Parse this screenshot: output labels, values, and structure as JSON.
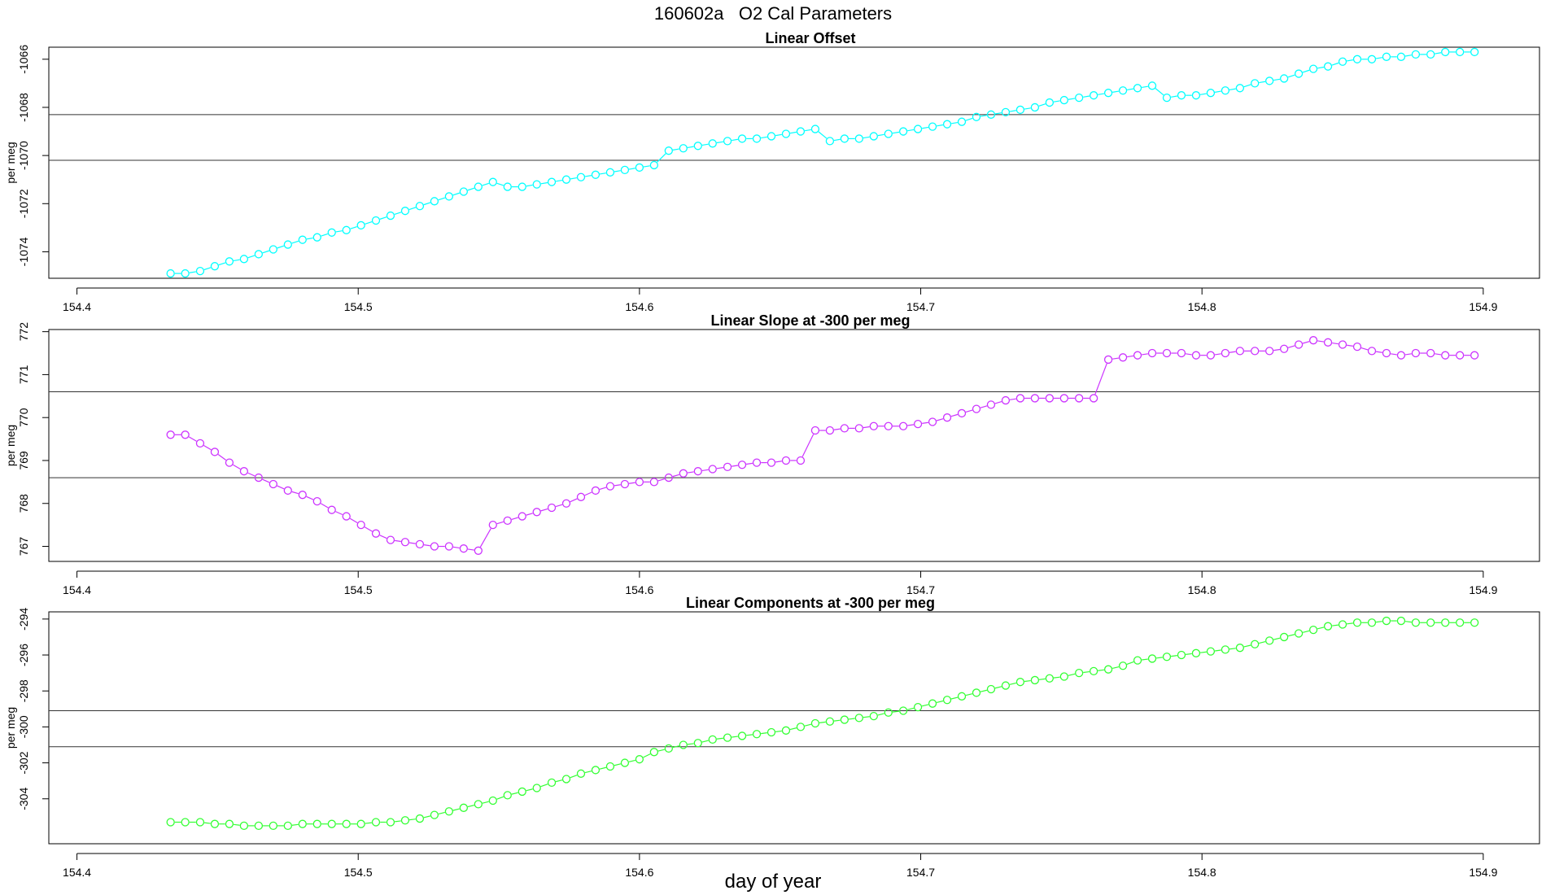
{
  "title": "160602a   O2 Cal Parameters",
  "xlabel": "day of year",
  "chart_data": [
    {
      "type": "scatter",
      "title": "Linear Offset",
      "ylabel": "per meg",
      "color": "#00ffff",
      "xlim": [
        154.39,
        154.92
      ],
      "ylim": [
        -1075.1,
        -1065.5
      ],
      "yticks": [
        -1074,
        -1072,
        -1070,
        -1068,
        -1066
      ],
      "xticks": [
        154.4,
        154.5,
        154.6,
        154.7,
        154.8,
        154.9
      ],
      "hlines": [
        -1068.3,
        -1070.2
      ],
      "series": [
        {
          "x": [
            154.4333,
            154.4385,
            154.4438,
            154.449,
            154.4542,
            154.4594,
            154.4646,
            154.4698,
            154.475,
            154.4802,
            154.4854,
            154.4906,
            154.4958,
            154.501,
            154.5063,
            154.5115,
            154.5167,
            154.5219,
            154.5271,
            154.5323,
            154.5375,
            154.5427,
            154.5479,
            154.5531,
            154.5583,
            154.5635,
            154.5688,
            154.574,
            154.5792,
            154.5844,
            154.5896,
            154.5948,
            154.6,
            154.6052,
            154.6104,
            154.6156,
            154.6208,
            154.626,
            154.6313,
            154.6365,
            154.6417,
            154.6469,
            154.6521,
            154.6573,
            154.6625,
            154.6677,
            154.6729,
            154.6781,
            154.6833,
            154.6885,
            154.6938,
            154.699,
            154.7042,
            154.7094,
            154.7146,
            154.7198,
            154.725,
            154.7302,
            154.7354,
            154.7406,
            154.7458,
            154.751,
            154.7563,
            154.7615,
            154.7667,
            154.7719,
            154.7771,
            154.7823,
            154.7875,
            154.7927,
            154.7979,
            154.8031,
            154.8083,
            154.8135,
            154.8188,
            154.824,
            154.8292,
            154.8344,
            154.8396,
            154.8448,
            154.85,
            154.8552,
            154.8604,
            154.8656,
            154.8708,
            154.876,
            154.8813,
            154.8865,
            154.8917,
            154.8969
          ],
          "y": [
            -1074.9,
            -1074.9,
            -1074.8,
            -1074.6,
            -1074.4,
            -1074.3,
            -1074.1,
            -1073.9,
            -1073.7,
            -1073.5,
            -1073.4,
            -1073.2,
            -1073.1,
            -1072.9,
            -1072.7,
            -1072.5,
            -1072.3,
            -1072.1,
            -1071.9,
            -1071.7,
            -1071.5,
            -1071.3,
            -1071.1,
            -1071.3,
            -1071.3,
            -1071.2,
            -1071.1,
            -1071.0,
            -1070.9,
            -1070.8,
            -1070.7,
            -1070.6,
            -1070.5,
            -1070.4,
            -1069.8,
            -1069.7,
            -1069.6,
            -1069.5,
            -1069.4,
            -1069.3,
            -1069.3,
            -1069.2,
            -1069.1,
            -1069.0,
            -1068.9,
            -1069.4,
            -1069.3,
            -1069.3,
            -1069.2,
            -1069.1,
            -1069.0,
            -1068.9,
            -1068.8,
            -1068.7,
            -1068.6,
            -1068.4,
            -1068.3,
            -1068.2,
            -1068.1,
            -1068.0,
            -1067.8,
            -1067.7,
            -1067.6,
            -1067.5,
            -1067.4,
            -1067.3,
            -1067.2,
            -1067.1,
            -1067.6,
            -1067.5,
            -1067.5,
            -1067.4,
            -1067.3,
            -1067.2,
            -1067.0,
            -1066.9,
            -1066.8,
            -1066.6,
            -1066.4,
            -1066.3,
            -1066.1,
            -1066.0,
            -1066.0,
            -1065.9,
            -1065.9,
            -1065.8,
            -1065.8,
            -1065.7,
            -1065.7,
            -1065.7
          ]
        }
      ]
    },
    {
      "type": "scatter",
      "title": "Linear Slope at -300 per meg",
      "ylabel": "per meg",
      "color": "#cc33ff",
      "xlim": [
        154.39,
        154.92
      ],
      "ylim": [
        766.65,
        772.05
      ],
      "yticks": [
        767,
        768,
        769,
        770,
        771,
        772
      ],
      "xticks": [
        154.4,
        154.5,
        154.6,
        154.7,
        154.8,
        154.9
      ],
      "hlines": [
        770.6,
        768.6
      ],
      "series": [
        {
          "x": [
            154.4333,
            154.4385,
            154.4438,
            154.449,
            154.4542,
            154.4594,
            154.4646,
            154.4698,
            154.475,
            154.4802,
            154.4854,
            154.4906,
            154.4958,
            154.501,
            154.5063,
            154.5115,
            154.5167,
            154.5219,
            154.5271,
            154.5323,
            154.5375,
            154.5427,
            154.5479,
            154.5531,
            154.5583,
            154.5635,
            154.5688,
            154.574,
            154.5792,
            154.5844,
            154.5896,
            154.5948,
            154.6,
            154.6052,
            154.6104,
            154.6156,
            154.6208,
            154.626,
            154.6313,
            154.6365,
            154.6417,
            154.6469,
            154.6521,
            154.6573,
            154.6625,
            154.6677,
            154.6729,
            154.6781,
            154.6833,
            154.6885,
            154.6938,
            154.699,
            154.7042,
            154.7094,
            154.7146,
            154.7198,
            154.725,
            154.7302,
            154.7354,
            154.7406,
            154.7458,
            154.751,
            154.7563,
            154.7615,
            154.7667,
            154.7719,
            154.7771,
            154.7823,
            154.7875,
            154.7927,
            154.7979,
            154.8031,
            154.8083,
            154.8135,
            154.8188,
            154.824,
            154.8292,
            154.8344,
            154.8396,
            154.8448,
            154.85,
            154.8552,
            154.8604,
            154.8656,
            154.8708,
            154.876,
            154.8813,
            154.8865,
            154.8917,
            154.8969
          ],
          "y": [
            769.6,
            769.6,
            769.4,
            769.2,
            768.95,
            768.75,
            768.6,
            768.45,
            768.3,
            768.2,
            768.05,
            767.85,
            767.7,
            767.5,
            767.3,
            767.15,
            767.1,
            767.05,
            767.0,
            767.0,
            766.95,
            766.9,
            767.5,
            767.6,
            767.7,
            767.8,
            767.9,
            768.0,
            768.15,
            768.3,
            768.4,
            768.45,
            768.5,
            768.5,
            768.6,
            768.7,
            768.75,
            768.8,
            768.85,
            768.9,
            768.95,
            768.95,
            769.0,
            769.0,
            769.7,
            769.7,
            769.75,
            769.75,
            769.8,
            769.8,
            769.8,
            769.85,
            769.9,
            770.0,
            770.1,
            770.2,
            770.3,
            770.4,
            770.45,
            770.45,
            770.45,
            770.45,
            770.45,
            770.45,
            771.35,
            771.4,
            771.45,
            771.5,
            771.5,
            771.5,
            771.45,
            771.45,
            771.5,
            771.55,
            771.55,
            771.55,
            771.6,
            771.7,
            771.8,
            771.75,
            771.7,
            771.65,
            771.55,
            771.5,
            771.45,
            771.5,
            771.5,
            771.45,
            771.45,
            771.45
          ]
        }
      ]
    },
    {
      "type": "scatter",
      "title": "Linear Components at -300 per meg",
      "ylabel": "per meg",
      "color": "#33ff33",
      "xlim": [
        154.39,
        154.92
      ],
      "ylim": [
        -306.5,
        -293.6
      ],
      "yticks": [
        -304,
        -302,
        -300,
        -298,
        -296,
        -294
      ],
      "xticks": [
        154.4,
        154.5,
        154.6,
        154.7,
        154.8,
        154.9
      ],
      "hlines": [
        -299.1,
        -301.1
      ],
      "series": [
        {
          "x": [
            154.4333,
            154.4385,
            154.4438,
            154.449,
            154.4542,
            154.4594,
            154.4646,
            154.4698,
            154.475,
            154.4802,
            154.4854,
            154.4906,
            154.4958,
            154.501,
            154.5063,
            154.5115,
            154.5167,
            154.5219,
            154.5271,
            154.5323,
            154.5375,
            154.5427,
            154.5479,
            154.5531,
            154.5583,
            154.5635,
            154.5688,
            154.574,
            154.5792,
            154.5844,
            154.5896,
            154.5948,
            154.6,
            154.6052,
            154.6104,
            154.6156,
            154.6208,
            154.626,
            154.6313,
            154.6365,
            154.6417,
            154.6469,
            154.6521,
            154.6573,
            154.6625,
            154.6677,
            154.6729,
            154.6781,
            154.6833,
            154.6885,
            154.6938,
            154.699,
            154.7042,
            154.7094,
            154.7146,
            154.7198,
            154.725,
            154.7302,
            154.7354,
            154.7406,
            154.7458,
            154.751,
            154.7563,
            154.7615,
            154.7667,
            154.7719,
            154.7771,
            154.7823,
            154.7875,
            154.7927,
            154.7979,
            154.8031,
            154.8083,
            154.8135,
            154.8188,
            154.824,
            154.8292,
            154.8344,
            154.8396,
            154.8448,
            154.85,
            154.8552,
            154.8604,
            154.8656,
            154.8708,
            154.876,
            154.8813,
            154.8865,
            154.8917,
            154.8969
          ],
          "y": [
            -305.3,
            -305.3,
            -305.3,
            -305.4,
            -305.4,
            -305.5,
            -305.5,
            -305.5,
            -305.5,
            -305.4,
            -305.4,
            -305.4,
            -305.4,
            -305.4,
            -305.3,
            -305.3,
            -305.2,
            -305.1,
            -304.9,
            -304.7,
            -304.5,
            -304.3,
            -304.1,
            -303.8,
            -303.6,
            -303.4,
            -303.1,
            -302.9,
            -302.6,
            -302.4,
            -302.2,
            -302.0,
            -301.8,
            -301.4,
            -301.2,
            -301.0,
            -300.9,
            -300.7,
            -300.6,
            -300.5,
            -300.4,
            -300.3,
            -300.2,
            -300.0,
            -299.8,
            -299.7,
            -299.6,
            -299.5,
            -299.4,
            -299.2,
            -299.1,
            -298.9,
            -298.7,
            -298.5,
            -298.3,
            -298.1,
            -297.9,
            -297.7,
            -297.5,
            -297.4,
            -297.3,
            -297.2,
            -297.0,
            -296.9,
            -296.8,
            -296.6,
            -296.3,
            -296.2,
            -296.1,
            -296.0,
            -295.9,
            -295.8,
            -295.7,
            -295.6,
            -295.4,
            -295.2,
            -295.0,
            -294.8,
            -294.6,
            -294.4,
            -294.3,
            -294.2,
            -294.2,
            -294.1,
            -294.1,
            -294.2,
            -294.2,
            -294.2,
            -294.2,
            -294.2
          ]
        }
      ]
    }
  ]
}
